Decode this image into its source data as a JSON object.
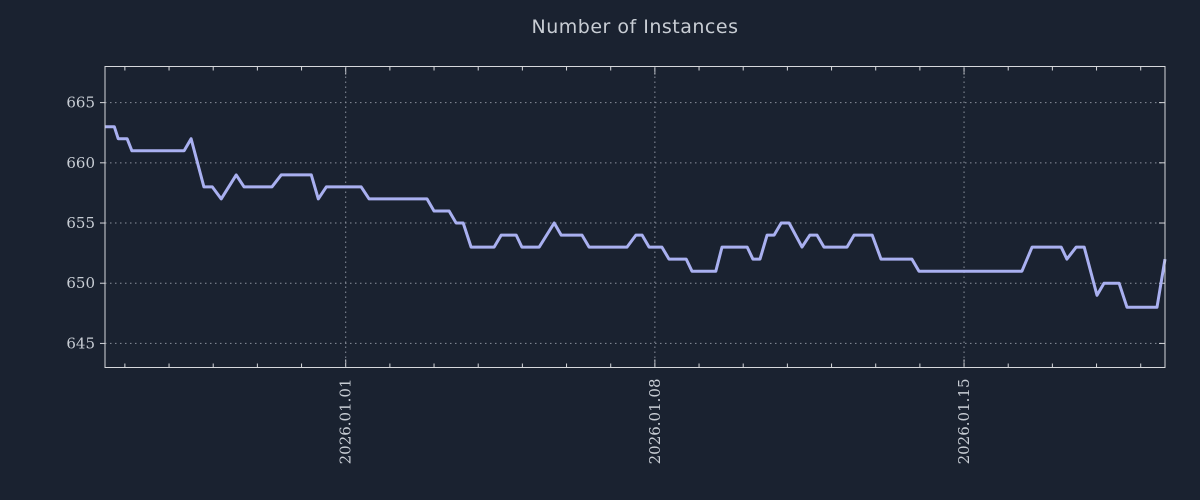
{
  "page": {
    "background": "#1a2230"
  },
  "chart_data": {
    "type": "line",
    "title": "Number of Instances",
    "legend": "none",
    "grid": "dotted",
    "x_axis": {
      "unit": "days relative to 2026-01-01 00:00",
      "range": [
        -5.45,
        18.55
      ],
      "minor_tick_step_days": 1,
      "major_ticks": [
        {
          "day": 0,
          "label": "2026.01.01"
        },
        {
          "day": 7,
          "label": "2026.01.08"
        },
        {
          "day": 14,
          "label": "2026.01.15"
        }
      ]
    },
    "y_axis": {
      "range": [
        643,
        668
      ],
      "ticks": [
        645,
        650,
        655,
        660,
        665
      ]
    },
    "series": [
      {
        "name": "instances",
        "points": [
          [
            -5.45,
            663
          ],
          [
            -5.24,
            663
          ],
          [
            -5.15,
            662
          ],
          [
            -4.95,
            662
          ],
          [
            -4.84,
            661
          ],
          [
            -3.66,
            661
          ],
          [
            -3.5,
            662
          ],
          [
            -3.21,
            658
          ],
          [
            -3.02,
            658
          ],
          [
            -2.82,
            657
          ],
          [
            -2.48,
            659
          ],
          [
            -2.3,
            658
          ],
          [
            -1.67,
            658
          ],
          [
            -1.46,
            659
          ],
          [
            -0.78,
            659
          ],
          [
            -0.62,
            657
          ],
          [
            -0.44,
            658
          ],
          [
            0.35,
            658
          ],
          [
            0.53,
            657
          ],
          [
            1.84,
            657
          ],
          [
            2.0,
            656
          ],
          [
            2.34,
            656
          ],
          [
            2.5,
            655
          ],
          [
            2.66,
            655
          ],
          [
            2.84,
            653
          ],
          [
            3.36,
            653
          ],
          [
            3.52,
            654
          ],
          [
            3.86,
            654
          ],
          [
            3.99,
            653
          ],
          [
            4.38,
            653
          ],
          [
            4.72,
            655
          ],
          [
            4.88,
            654
          ],
          [
            5.35,
            654
          ],
          [
            5.51,
            653
          ],
          [
            6.37,
            653
          ],
          [
            6.57,
            654
          ],
          [
            6.71,
            654
          ],
          [
            6.87,
            653
          ],
          [
            7.16,
            653
          ],
          [
            7.32,
            652
          ],
          [
            7.71,
            652
          ],
          [
            7.84,
            651
          ],
          [
            8.38,
            651
          ],
          [
            8.52,
            653
          ],
          [
            9.09,
            653
          ],
          [
            9.22,
            652
          ],
          [
            9.38,
            652
          ],
          [
            9.54,
            654
          ],
          [
            9.7,
            654
          ],
          [
            9.86,
            655
          ],
          [
            10.04,
            655
          ],
          [
            10.33,
            653
          ],
          [
            10.51,
            654
          ],
          [
            10.67,
            654
          ],
          [
            10.83,
            653
          ],
          [
            11.35,
            653
          ],
          [
            11.51,
            654
          ],
          [
            11.92,
            654
          ],
          [
            12.12,
            652
          ],
          [
            12.82,
            652
          ],
          [
            12.98,
            651
          ],
          [
            15.31,
            651
          ],
          [
            15.54,
            653
          ],
          [
            16.2,
            653
          ],
          [
            16.33,
            652
          ],
          [
            16.54,
            653
          ],
          [
            16.72,
            653
          ],
          [
            17.01,
            649
          ],
          [
            17.17,
            650
          ],
          [
            17.51,
            650
          ],
          [
            17.69,
            648
          ],
          [
            18.37,
            648
          ],
          [
            18.55,
            652
          ]
        ]
      }
    ],
    "style": {
      "line_color": "#a9b0f0",
      "axis_color": "#d6d8dc",
      "grid_color": "#8a909c",
      "text_color": "#c8cdd4",
      "background": "#1a2230"
    }
  }
}
